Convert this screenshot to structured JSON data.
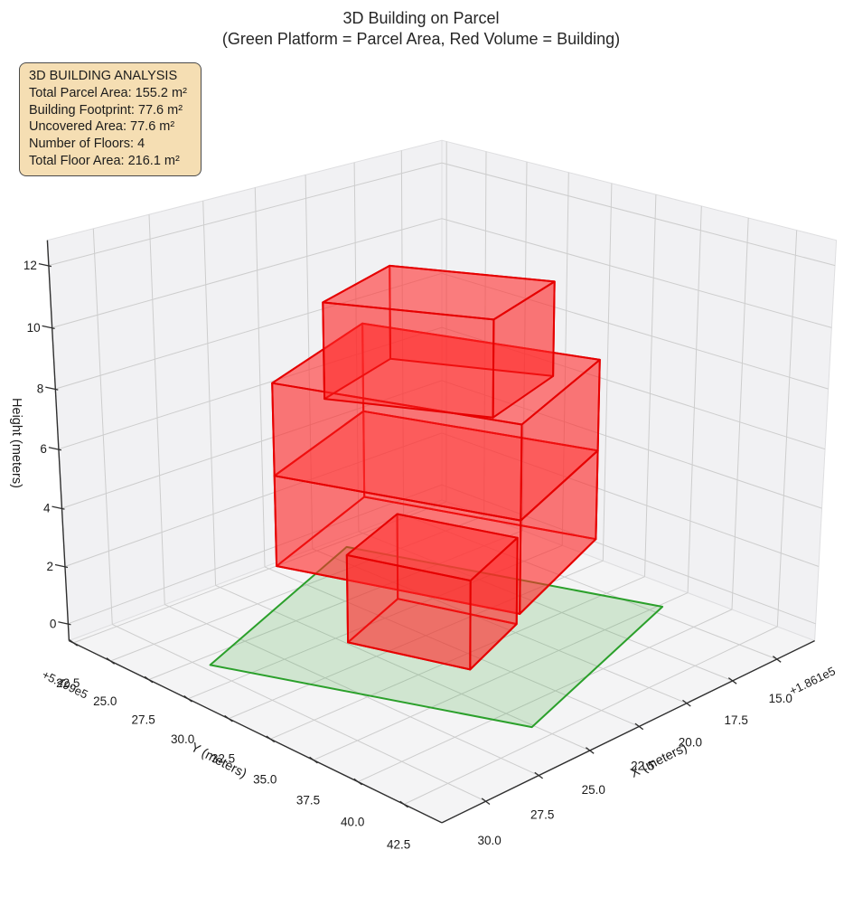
{
  "title": {
    "line1": "3D Building on Parcel",
    "line2": "(Green Platform = Parcel Area, Red Volume = Building)"
  },
  "info_box": {
    "title": "3D BUILDING ANALYSIS",
    "lines": [
      "Total Parcel Area: 155.2 m²",
      "Building Footprint: 77.6 m²",
      "Uncovered Area: 77.6 m²",
      "Number of Floors: 4",
      "Total Floor Area: 216.1 m²"
    ],
    "bg_color": "#f5deb3",
    "border_color": "#4a4a4a"
  },
  "chart_data": {
    "type": "3d-building-plot",
    "axes": {
      "x": {
        "label": "X (meters)",
        "ticks": [
          15.0,
          17.5,
          20.0,
          22.5,
          25.0,
          27.5,
          30.0
        ],
        "offset_text": "+1.861e5",
        "range": [
          12.8,
          32.0
        ]
      },
      "y": {
        "label": "Y (meters)",
        "ticks": [
          22.5,
          25.0,
          27.5,
          30.0,
          32.5,
          35.0,
          37.5,
          40.0,
          42.5
        ],
        "offset_text": "+5.499e5",
        "range": [
          22.2,
          44.5
        ]
      },
      "z": {
        "label": "Height (meters)",
        "ticks": [
          0,
          2,
          4,
          6,
          8,
          10,
          12
        ],
        "range": [
          -0.6,
          12.8
        ]
      }
    },
    "view": {
      "elev_deg": 21,
      "azim_deg": 45,
      "perspective_dist": 5
    },
    "parcel": {
      "z": 0,
      "polygon": [
        [
          30.6,
          29.5
        ],
        [
          20.0,
          24.5
        ],
        [
          15.6,
          38.8
        ],
        [
          26.1,
          42.6
        ]
      ],
      "edge_color": "#2ba02b",
      "fill_color": "rgba(44,160,44,0.18)"
    },
    "building": {
      "edge_color": "#e60000",
      "face_color": "rgba(255,40,40,0.38)",
      "top_face_color": "rgba(255,70,70,0.42)",
      "floors": [
        {
          "name": "floor-1",
          "z0": 0,
          "z1": 3,
          "draw_bottom": true,
          "footprint": [
            [
              25.9,
              31.9
            ],
            [
              22.0,
              30.2
            ],
            [
              20.5,
              35.6
            ],
            [
              24.4,
              37.3
            ]
          ]
        },
        {
          "name": "floor-2",
          "z0": 3,
          "z1": 6,
          "draw_bottom": true,
          "footprint": [
            [
              28.3,
              30.7
            ],
            [
              21.7,
              27.8
            ],
            [
              18.6,
              38.0
            ],
            [
              25.2,
              40.9
            ]
          ]
        },
        {
          "name": "floor-3",
          "z0": 6,
          "z1": 9,
          "draw_bottom": false,
          "footprint": [
            [
              28.3,
              30.7
            ],
            [
              21.7,
              27.8
            ],
            [
              18.6,
              38.0
            ],
            [
              25.2,
              40.9
            ]
          ]
        },
        {
          "name": "floor-4",
          "z0": 9,
          "z1": 12,
          "draw_bottom": false,
          "footprint": [
            [
              28.1,
              33.5
            ],
            [
              23.7,
              31.9
            ],
            [
              21.0,
              38.0
            ],
            [
              25.4,
              39.6
            ]
          ]
        }
      ]
    },
    "style": {
      "pane_color": "#f1f1f3",
      "floor_pane_color": "#f4f4f5",
      "grid_color": "#cdcdcd",
      "axis_line_color": "#2f2f2f",
      "tick_label_color": "#1a1a1a"
    }
  }
}
